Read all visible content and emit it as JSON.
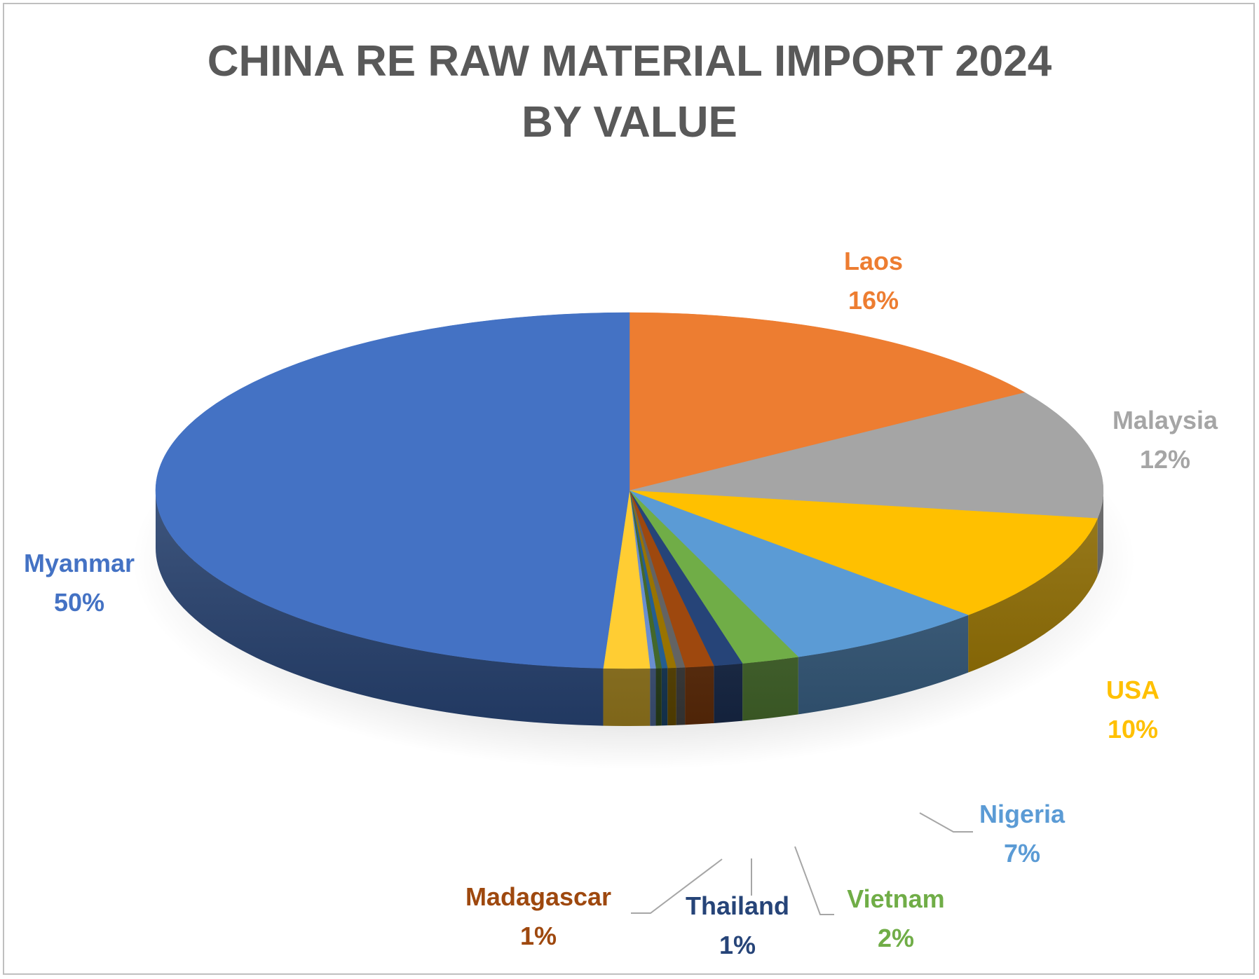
{
  "chart_data": {
    "type": "pie",
    "title": "CHINA RE RAW MATERIAL IMPORT 2024",
    "subtitle": "BY VALUE",
    "slices": [
      {
        "name": "Laos",
        "value": 16,
        "label": "16%",
        "color": "#ED7D31"
      },
      {
        "name": "Malaysia",
        "value": 12,
        "label": "12%",
        "color": "#A5A5A5"
      },
      {
        "name": "USA",
        "value": 10,
        "label": "10%",
        "color": "#FFC000"
      },
      {
        "name": "Nigeria",
        "value": 7,
        "label": "7%",
        "color": "#5B9BD5"
      },
      {
        "name": "Vietnam",
        "value": 2,
        "label": "2%",
        "color": "#70AD47"
      },
      {
        "name": "Thailand",
        "value": 1,
        "label": "1%",
        "color": "#264478"
      },
      {
        "name": "Madagascar",
        "value": 1,
        "label": "1%",
        "color": "#9E480E"
      },
      {
        "name": "",
        "value": 0.3,
        "label": "",
        "color": "#636363"
      },
      {
        "name": "",
        "value": 0.3,
        "label": "",
        "color": "#997300"
      },
      {
        "name": "",
        "value": 0.2,
        "label": "",
        "color": "#255E91"
      },
      {
        "name": "",
        "value": 0.2,
        "label": "",
        "color": "#43682B"
      },
      {
        "name": "",
        "value": 0.2,
        "label": "",
        "color": "#698ED0"
      },
      {
        "name": "",
        "value": 1.6,
        "label": "",
        "color": "#FFCD33"
      },
      {
        "name": "Myanmar",
        "value": 50,
        "label": "50%",
        "color": "#4472C4"
      }
    ]
  }
}
